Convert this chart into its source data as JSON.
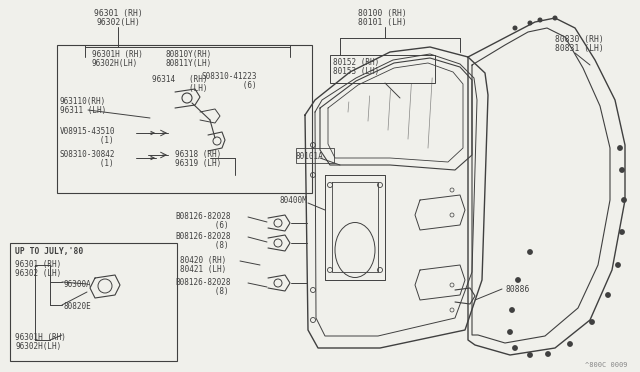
{
  "bg_color": "#f0f0eb",
  "line_color": "#404040",
  "text_color": "#404040",
  "watermark": "^800C 0009",
  "labels": {
    "96301_RH": "96301 (RH)",
    "96302_LH": "96302(LH)",
    "96301H_RH": "96301H (RH)",
    "96302H_LH": "96302H(LH)",
    "80810Y_RH": "80810Y(RH)",
    "80811Y_LH": "80811Y(LH)",
    "96314_RH": "96314   (RH)",
    "96314_LH": "        (LH)",
    "S08310_41223": "S08310-41223",
    "S08310_41223_6": "      (6)",
    "963110_RH": "963110(RH)",
    "96311_LH": "96311 (LH)",
    "V08915_43510": "V08915-43510",
    "V08915_43510_1": "      (1)",
    "S08310_30842": "S08310-30842",
    "S08310_30842_1": "      (1)",
    "96318_RH": "96318 (RH)",
    "96319_LH": "96319 (LH)",
    "80101A": "80101A",
    "80400M": "80400M",
    "B08126_82028_6": "B08126-82028",
    "qty6": "      (6)",
    "B08126_82028_8a": "B08126-82028",
    "qty8a": "      (8)",
    "80420_RH": "80420 (RH)",
    "80421_LH": "80421 (LH)",
    "B08126_82028_8b": "B08126-82028",
    "qty8b": "      (8)",
    "80100_RH": "80100 (RH)",
    "80101_LH": "80101 (LH)",
    "80152_RH": "80152 (RH)",
    "80153_LH": "80153 (LH)",
    "80830_RH": "80830 (RH)",
    "80831_LH": "80831 (LH)",
    "80886": "80886",
    "up_to_july": "UP TO JULY,'80",
    "96301_RH2": "96301 (RH)",
    "96302_LH2": "96302 (LH)",
    "96300A": "96300A",
    "80820E": "80820E",
    "96301H_RH2": "96301H (RH)",
    "96302H_LH2": "96302H(LH)"
  }
}
